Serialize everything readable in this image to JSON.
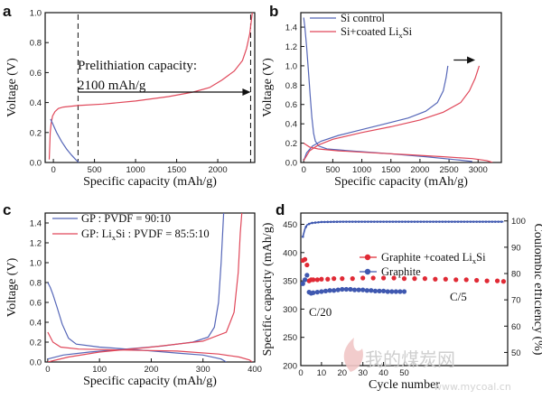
{
  "watermark": {
    "text": "我的煤炭网",
    "url": "www.mycoal.cn"
  },
  "colors": {
    "blue": "#5566b8",
    "red": "#e0485a",
    "blue_dot": "#3f58b0",
    "red_dot": "#e02a35",
    "black": "#111111"
  },
  "chart_data": [
    {
      "panel": "a",
      "type": "line",
      "xlabel": "Specific capacity (mAh/g)",
      "ylabel": "Voltage (V)",
      "xlim": [
        -100,
        2450
      ],
      "ylim": [
        0,
        1.0
      ],
      "x_ticks": [
        0,
        500,
        1000,
        1500,
        2000
      ],
      "y_ticks": [
        0.0,
        0.2,
        0.4,
        0.6,
        0.8,
        1.0
      ],
      "annotation": {
        "line1": "Prelithiation capacity:",
        "line2": "2100 mAh/g"
      },
      "arrow": {
        "from": [
          300,
          0.47
        ],
        "to": [
          2400,
          0.47
        ]
      },
      "dashed_lines_x": [
        300,
        2400
      ],
      "series": [
        {
          "color": "red",
          "points": [
            [
              -50,
              0.02
            ],
            [
              -45,
              0.1
            ],
            [
              -38,
              0.2
            ],
            [
              -28,
              0.26
            ],
            [
              -10,
              0.31
            ],
            [
              20,
              0.34
            ],
            [
              60,
              0.36
            ],
            [
              120,
              0.37
            ],
            [
              300,
              0.38
            ],
            [
              600,
              0.39
            ],
            [
              1000,
              0.41
            ],
            [
              1400,
              0.44
            ],
            [
              1700,
              0.47
            ],
            [
              1900,
              0.5
            ],
            [
              2050,
              0.55
            ],
            [
              2200,
              0.61
            ],
            [
              2300,
              0.68
            ],
            [
              2350,
              0.76
            ],
            [
              2390,
              0.86
            ],
            [
              2420,
              1.0
            ]
          ]
        },
        {
          "color": "blue",
          "points": [
            [
              -35,
              0.29
            ],
            [
              -10,
              0.26
            ],
            [
              40,
              0.2
            ],
            [
              100,
              0.14
            ],
            [
              160,
              0.09
            ],
            [
              220,
              0.05
            ],
            [
              270,
              0.02
            ],
            [
              310,
              0.0
            ]
          ]
        }
      ]
    },
    {
      "panel": "b",
      "type": "line",
      "xlabel": "Specific capacity (mAh/g)",
      "ylabel": "Voltage (V)",
      "xlim": [
        -50,
        3400
      ],
      "ylim": [
        0,
        1.55
      ],
      "x_ticks": [
        0,
        500,
        1000,
        1500,
        2000,
        2500,
        3000
      ],
      "y_ticks": [
        0.0,
        0.2,
        0.4,
        0.6,
        0.8,
        1.0,
        1.2,
        1.4
      ],
      "legend": [
        "Si control",
        "Si+coated LixSi"
      ],
      "arrow": {
        "from": [
          2580,
          1.06
        ],
        "to": [
          2950,
          1.06
        ]
      },
      "series": [
        {
          "name": "Si control",
          "color": "blue",
          "points": [
            [
              0,
              1.5
            ],
            [
              20,
              1.4
            ],
            [
              50,
              1.2
            ],
            [
              80,
              0.95
            ],
            [
              110,
              0.7
            ],
            [
              140,
              0.47
            ],
            [
              170,
              0.3
            ],
            [
              200,
              0.22
            ],
            [
              260,
              0.17
            ],
            [
              400,
              0.14
            ],
            [
              800,
              0.12
            ],
            [
              1500,
              0.09
            ],
            [
              2100,
              0.06
            ],
            [
              2600,
              0.03
            ],
            [
              2900,
              0.01
            ]
          ]
        },
        {
          "name": "Si control",
          "color": "blue",
          "points": [
            [
              0,
              0.02
            ],
            [
              50,
              0.1
            ],
            [
              150,
              0.17
            ],
            [
              300,
              0.22
            ],
            [
              600,
              0.28
            ],
            [
              1000,
              0.34
            ],
            [
              1400,
              0.4
            ],
            [
              1800,
              0.46
            ],
            [
              2100,
              0.53
            ],
            [
              2300,
              0.62
            ],
            [
              2400,
              0.74
            ],
            [
              2450,
              0.88
            ],
            [
              2480,
              1.0
            ]
          ]
        },
        {
          "name": "Si+coated LixSi",
          "color": "red",
          "points": [
            [
              0,
              0.02
            ],
            [
              100,
              0.12
            ],
            [
              250,
              0.18
            ],
            [
              500,
              0.24
            ],
            [
              1000,
              0.31
            ],
            [
              1500,
              0.37
            ],
            [
              2000,
              0.44
            ],
            [
              2400,
              0.52
            ],
            [
              2700,
              0.62
            ],
            [
              2850,
              0.74
            ],
            [
              2950,
              0.87
            ],
            [
              3020,
              1.0
            ]
          ]
        },
        {
          "name": "Si+coated LixSi",
          "color": "red",
          "points": [
            [
              0,
              0.2
            ],
            [
              100,
              0.16
            ],
            [
              250,
              0.14
            ],
            [
              600,
              0.12
            ],
            [
              1200,
              0.1
            ],
            [
              1800,
              0.08
            ],
            [
              2400,
              0.06
            ],
            [
              2900,
              0.04
            ],
            [
              3150,
              0.02
            ],
            [
              3250,
              0.0
            ]
          ]
        }
      ]
    },
    {
      "panel": "c",
      "type": "line",
      "xlabel": "Specific capacity (mAh/g)",
      "ylabel": "Voltage (V)",
      "xlim": [
        -5,
        400
      ],
      "ylim": [
        0,
        1.5
      ],
      "x_ticks": [
        0,
        100,
        200,
        300,
        400
      ],
      "y_ticks": [
        0.0,
        0.2,
        0.4,
        0.6,
        0.8,
        1.0,
        1.2,
        1.4
      ],
      "legend": [
        "GP : PVDF = 90:10",
        "GP: LixSi : PVDF = 85:5:10"
      ],
      "series": [
        {
          "name": "GP : PVDF = 90:10",
          "color": "blue",
          "points": [
            [
              0,
              0.8
            ],
            [
              5,
              0.75
            ],
            [
              10,
              0.68
            ],
            [
              18,
              0.55
            ],
            [
              28,
              0.38
            ],
            [
              40,
              0.24
            ],
            [
              55,
              0.18
            ],
            [
              100,
              0.15
            ],
            [
              180,
              0.12
            ],
            [
              250,
              0.09
            ],
            [
              300,
              0.07
            ],
            [
              335,
              0.03
            ],
            [
              345,
              0.0
            ]
          ]
        },
        {
          "name": "GP : PVDF = 90:10",
          "color": "blue",
          "points": [
            [
              0,
              0.03
            ],
            [
              30,
              0.07
            ],
            [
              80,
              0.1
            ],
            [
              150,
              0.13
            ],
            [
              220,
              0.16
            ],
            [
              280,
              0.2
            ],
            [
              310,
              0.25
            ],
            [
              322,
              0.35
            ],
            [
              330,
              0.6
            ],
            [
              335,
              1.0
            ],
            [
              340,
              1.5
            ]
          ]
        },
        {
          "name": "GP: LixSi : PVDF = 85:5:10",
          "color": "red",
          "points": [
            [
              0,
              0.3
            ],
            [
              10,
              0.2
            ],
            [
              25,
              0.15
            ],
            [
              60,
              0.13
            ],
            [
              150,
              0.12
            ],
            [
              250,
              0.11
            ],
            [
              330,
              0.08
            ],
            [
              370,
              0.05
            ],
            [
              390,
              0.02
            ],
            [
              395,
              0.0
            ]
          ]
        },
        {
          "name": "GP: LixSi : PVDF = 85:5:10",
          "color": "red",
          "points": [
            [
              0,
              0.0
            ],
            [
              40,
              0.05
            ],
            [
              100,
              0.1
            ],
            [
              200,
              0.15
            ],
            [
              300,
              0.21
            ],
            [
              345,
              0.3
            ],
            [
              360,
              0.5
            ],
            [
              368,
              0.9
            ],
            [
              372,
              1.3
            ],
            [
              375,
              1.5
            ]
          ]
        }
      ]
    },
    {
      "panel": "d",
      "type": "scatter",
      "xlabel": "Cycle number",
      "ylabel": "Specific capacity (mAh/g)",
      "ylabel_right": "Coulombic efficiency (%)",
      "xlim": [
        0,
        100
      ],
      "ylim": [
        200,
        470
      ],
      "ylim_right": [
        45,
        103
      ],
      "x_ticks": [
        0,
        10,
        20,
        30,
        40,
        50
      ],
      "y_ticks": [
        200,
        250,
        300,
        350,
        400,
        450
      ],
      "y_ticks_right": [
        50,
        60,
        70,
        80,
        90,
        100
      ],
      "legend": [
        "Graphite +coated LixSi",
        "Graphite"
      ],
      "annotations": [
        "C/20",
        "C/5"
      ],
      "series": [
        {
          "name": "Graphite +coated LixSi",
          "color": "red",
          "marker": "dot",
          "points": [
            [
              1,
              386
            ],
            [
              2,
              388
            ],
            [
              3,
              378
            ],
            [
              4,
              350
            ],
            [
              5,
              352
            ],
            [
              6,
              352
            ],
            [
              8,
              352
            ],
            [
              10,
              353
            ],
            [
              13,
              353
            ],
            [
              16,
              354
            ],
            [
              20,
              354
            ],
            [
              25,
              354
            ],
            [
              30,
              355
            ],
            [
              35,
              355
            ],
            [
              40,
              355
            ],
            [
              45,
              355
            ],
            [
              50,
              354
            ],
            [
              55,
              354
            ],
            [
              60,
              354
            ],
            [
              65,
              353
            ],
            [
              70,
              353
            ],
            [
              75,
              352
            ],
            [
              80,
              352
            ],
            [
              85,
              351
            ],
            [
              90,
              350
            ],
            [
              95,
              350
            ],
            [
              98,
              349
            ]
          ]
        },
        {
          "name": "Graphite",
          "color": "blue",
          "marker": "dot",
          "points": [
            [
              1,
              345
            ],
            [
              2,
              352
            ],
            [
              3,
              360
            ],
            [
              4,
              330
            ],
            [
              5,
              328
            ],
            [
              6,
              329
            ],
            [
              8,
              330
            ],
            [
              10,
              331
            ],
            [
              12,
              332
            ],
            [
              14,
              333
            ],
            [
              16,
              333
            ],
            [
              18,
              334
            ],
            [
              20,
              335
            ],
            [
              22,
              335
            ],
            [
              24,
              335
            ],
            [
              26,
              334
            ],
            [
              28,
              334
            ],
            [
              30,
              334
            ],
            [
              32,
              333
            ],
            [
              34,
              333
            ],
            [
              36,
              332
            ],
            [
              38,
              332
            ],
            [
              40,
              332
            ],
            [
              42,
              331
            ],
            [
              44,
              331
            ],
            [
              46,
              331
            ],
            [
              48,
              331
            ],
            [
              50,
              331
            ]
          ]
        },
        {
          "name": "Coulombic efficiency",
          "color": "blue",
          "marker": "line",
          "points": [
            [
              1,
              94
            ],
            [
              2,
              97
            ],
            [
              3,
              98.5
            ],
            [
              5,
              99.2
            ],
            [
              10,
              99.6
            ],
            [
              20,
              99.7
            ],
            [
              50,
              99.7
            ],
            [
              80,
              99.7
            ],
            [
              98,
              99.7
            ]
          ]
        }
      ]
    }
  ]
}
